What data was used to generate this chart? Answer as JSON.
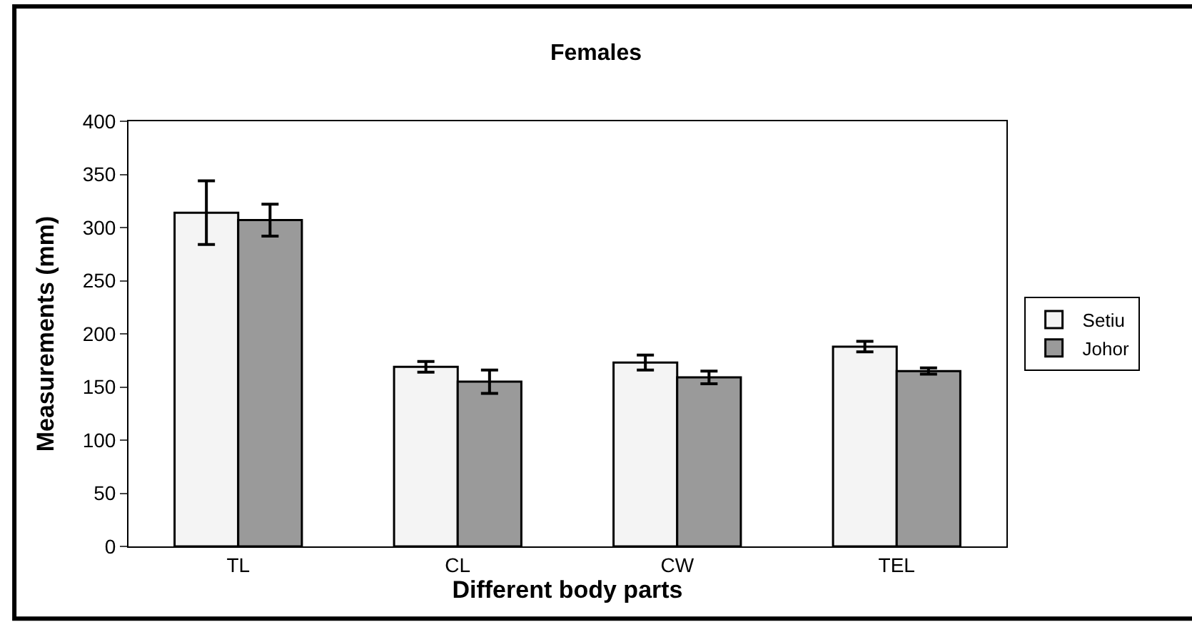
{
  "chart_data": {
    "type": "bar",
    "title": "Females",
    "xlabel": "Different body parts",
    "ylabel": "Measurements (mm)",
    "categories": [
      "TL",
      "CL",
      "CW",
      "TEL"
    ],
    "series": [
      {
        "name": "Setiu",
        "color": "#f4f4f4",
        "values": [
          314,
          169,
          173,
          188
        ],
        "errors": [
          30,
          5,
          7,
          5
        ]
      },
      {
        "name": "Johor",
        "color": "#9a9a9a",
        "values": [
          307,
          155,
          159,
          165
        ],
        "errors": [
          15,
          11,
          6,
          3
        ]
      }
    ],
    "ylim": [
      0,
      400
    ],
    "yticks": [
      0,
      50,
      100,
      150,
      200,
      250,
      300,
      350,
      400
    ],
    "legend": "right"
  }
}
